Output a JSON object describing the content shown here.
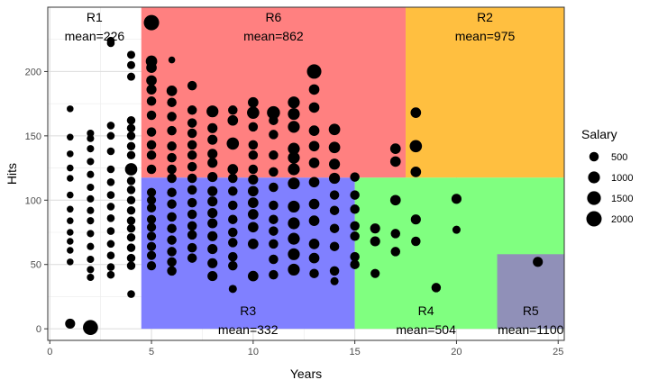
{
  "chart_data": {
    "type": "scatter",
    "xlabel": "Years",
    "ylabel": "Hits",
    "xlim": [
      -0.1,
      25.3
    ],
    "ylim": [
      -9,
      250
    ],
    "x_ticks": [
      0,
      5,
      10,
      15,
      20,
      25
    ],
    "y_ticks": [
      0,
      50,
      100,
      150,
      200
    ],
    "grid": true,
    "legend": {
      "title": "Salary",
      "position": "right",
      "entries": [
        {
          "label": "500",
          "value": 500
        },
        {
          "label": "1000",
          "value": 1000
        },
        {
          "label": "1500",
          "value": 1500
        },
        {
          "label": "2000",
          "value": 2000
        }
      ]
    },
    "regions": [
      {
        "name": "R1",
        "mean_label": "mean=226",
        "x": [
          -0.1,
          4.5
        ],
        "y": [
          0,
          250
        ],
        "color": "#ffffff"
      },
      {
        "name": "R6",
        "mean_label": "mean=862",
        "x": [
          4.5,
          17.5
        ],
        "y": [
          117.5,
          250
        ],
        "color": "#ff8080"
      },
      {
        "name": "R2",
        "mean_label": "mean=975",
        "x": [
          17.5,
          25.3
        ],
        "y": [
          117.5,
          250
        ],
        "color": "#ffbf40"
      },
      {
        "name": "R3",
        "mean_label": "mean=332",
        "x": [
          4.5,
          15
        ],
        "y": [
          0,
          117.5
        ],
        "color": "#8080ff"
      },
      {
        "name": "R4",
        "mean_label": "mean=504",
        "x": [
          15,
          25.3
        ],
        "y": [
          0,
          117.5
        ],
        "color": "#80ff80"
      },
      {
        "name": "R5",
        "mean_label": "mean=1100",
        "x": [
          22,
          25.3
        ],
        "y": [
          0,
          58
        ],
        "color": "#9090b8"
      }
    ],
    "points": [
      [
        1,
        171,
        150
      ],
      [
        1,
        149,
        150
      ],
      [
        1,
        136,
        150
      ],
      [
        1,
        125,
        150
      ],
      [
        1,
        117,
        150
      ],
      [
        1,
        104,
        150
      ],
      [
        1,
        93,
        150
      ],
      [
        1,
        84,
        150
      ],
      [
        1,
        75,
        150
      ],
      [
        1,
        68,
        150
      ],
      [
        1,
        61,
        150
      ],
      [
        1,
        52,
        150
      ],
      [
        1,
        4,
        600
      ],
      [
        2,
        152,
        200
      ],
      [
        2,
        148,
        200
      ],
      [
        2,
        140,
        200
      ],
      [
        2,
        130,
        200
      ],
      [
        2,
        120,
        200
      ],
      [
        2,
        110,
        200
      ],
      [
        2,
        101,
        200
      ],
      [
        2,
        92,
        200
      ],
      [
        2,
        84,
        200
      ],
      [
        2,
        74,
        200
      ],
      [
        2,
        64,
        200
      ],
      [
        2,
        54,
        200
      ],
      [
        2,
        46,
        200
      ],
      [
        2,
        40,
        200
      ],
      [
        2,
        1,
        1900
      ],
      [
        3,
        224,
        250
      ],
      [
        3,
        222,
        250
      ],
      [
        3,
        158,
        250
      ],
      [
        3,
        150,
        250
      ],
      [
        3,
        138,
        250
      ],
      [
        3,
        124,
        250
      ],
      [
        3,
        114,
        250
      ],
      [
        3,
        104,
        250
      ],
      [
        3,
        95,
        250
      ],
      [
        3,
        86,
        250
      ],
      [
        3,
        76,
        250
      ],
      [
        3,
        66,
        250
      ],
      [
        3,
        57,
        250
      ],
      [
        3,
        48,
        250
      ],
      [
        3,
        42,
        250
      ],
      [
        4,
        213,
        300
      ],
      [
        4,
        205,
        300
      ],
      [
        4,
        196,
        300
      ],
      [
        4,
        162,
        350
      ],
      [
        4,
        156,
        350
      ],
      [
        4,
        150,
        350
      ],
      [
        4,
        142,
        350
      ],
      [
        4,
        135,
        350
      ],
      [
        4,
        124,
        1100
      ],
      [
        4,
        115,
        350
      ],
      [
        4,
        108,
        350
      ],
      [
        4,
        100,
        350
      ],
      [
        4,
        92,
        350
      ],
      [
        4,
        84,
        350
      ],
      [
        4,
        78,
        350
      ],
      [
        4,
        71,
        350
      ],
      [
        4,
        63,
        350
      ],
      [
        4,
        55,
        350
      ],
      [
        4,
        49,
        350
      ],
      [
        4,
        27,
        250
      ],
      [
        5,
        238,
        2000
      ],
      [
        5,
        208,
        900
      ],
      [
        5,
        203,
        700
      ],
      [
        5,
        193,
        700
      ],
      [
        5,
        186,
        600
      ],
      [
        5,
        177,
        500
      ],
      [
        5,
        166,
        500
      ],
      [
        5,
        153,
        500
      ],
      [
        5,
        143,
        500
      ],
      [
        5,
        135,
        500
      ],
      [
        5,
        124,
        500
      ],
      [
        5,
        106,
        450
      ],
      [
        5,
        100,
        450
      ],
      [
        5,
        94,
        450
      ],
      [
        5,
        85,
        450
      ],
      [
        5,
        79,
        450
      ],
      [
        5,
        72,
        450
      ],
      [
        5,
        64,
        450
      ],
      [
        5,
        57,
        450
      ],
      [
        5,
        49,
        450
      ],
      [
        6,
        209,
        150
      ],
      [
        6,
        185,
        700
      ],
      [
        6,
        176,
        500
      ],
      [
        6,
        165,
        500
      ],
      [
        6,
        154,
        500
      ],
      [
        6,
        142,
        500
      ],
      [
        6,
        133,
        500
      ],
      [
        6,
        124,
        500
      ],
      [
        6,
        117,
        500
      ],
      [
        6,
        106,
        500
      ],
      [
        6,
        97,
        500
      ],
      [
        6,
        87,
        500
      ],
      [
        6,
        78,
        500
      ],
      [
        6,
        69,
        500
      ],
      [
        6,
        60,
        500
      ],
      [
        6,
        52,
        500
      ],
      [
        6,
        45,
        500
      ],
      [
        7,
        189,
        500
      ],
      [
        7,
        170,
        500
      ],
      [
        7,
        160,
        500
      ],
      [
        7,
        152,
        500
      ],
      [
        7,
        143,
        500
      ],
      [
        7,
        135,
        500
      ],
      [
        7,
        126,
        500
      ],
      [
        7,
        117,
        500
      ],
      [
        7,
        108,
        500
      ],
      [
        7,
        98,
        500
      ],
      [
        7,
        89,
        500
      ],
      [
        7,
        80,
        500
      ],
      [
        7,
        73,
        500
      ],
      [
        7,
        63,
        500
      ],
      [
        7,
        55,
        500
      ],
      [
        8,
        169,
        1000
      ],
      [
        8,
        156,
        600
      ],
      [
        8,
        147,
        600
      ],
      [
        8,
        136,
        600
      ],
      [
        8,
        129,
        600
      ],
      [
        8,
        118,
        600
      ],
      [
        8,
        107,
        600
      ],
      [
        8,
        99,
        600
      ],
      [
        8,
        90,
        600
      ],
      [
        8,
        82,
        600
      ],
      [
        8,
        72,
        600
      ],
      [
        8,
        62,
        600
      ],
      [
        8,
        51,
        600
      ],
      [
        8,
        41,
        600
      ],
      [
        9,
        170,
        500
      ],
      [
        9,
        162,
        700
      ],
      [
        9,
        144,
        1100
      ],
      [
        9,
        124,
        700
      ],
      [
        9,
        117,
        500
      ],
      [
        9,
        107,
        500
      ],
      [
        9,
        96,
        500
      ],
      [
        9,
        85,
        500
      ],
      [
        9,
        75,
        500
      ],
      [
        9,
        67,
        500
      ],
      [
        9,
        56,
        500
      ],
      [
        9,
        49,
        500
      ],
      [
        9,
        31,
        300
      ],
      [
        10,
        176,
        700
      ],
      [
        10,
        168,
        1100
      ],
      [
        10,
        157,
        500
      ],
      [
        10,
        143,
        500
      ],
      [
        10,
        135,
        500
      ],
      [
        10,
        124,
        500
      ],
      [
        10,
        116,
        600
      ],
      [
        10,
        107,
        700
      ],
      [
        10,
        98,
        700
      ],
      [
        10,
        89,
        700
      ],
      [
        10,
        79,
        700
      ],
      [
        10,
        66,
        700
      ],
      [
        10,
        41,
        700
      ],
      [
        11,
        168,
        1300
      ],
      [
        11,
        162,
        500
      ],
      [
        11,
        151,
        500
      ],
      [
        11,
        135,
        500
      ],
      [
        11,
        122,
        500
      ],
      [
        11,
        110,
        500
      ],
      [
        11,
        96,
        500
      ],
      [
        11,
        85,
        500
      ],
      [
        11,
        76,
        500
      ],
      [
        11,
        66,
        500
      ],
      [
        11,
        54,
        500
      ],
      [
        11,
        42,
        500
      ],
      [
        12,
        176,
        1000
      ],
      [
        12,
        167,
        1000
      ],
      [
        12,
        157,
        1000
      ],
      [
        12,
        140,
        1000
      ],
      [
        12,
        133,
        1000
      ],
      [
        12,
        124,
        1000
      ],
      [
        12,
        113,
        1000
      ],
      [
        12,
        95,
        1000
      ],
      [
        12,
        82,
        1000
      ],
      [
        12,
        70,
        1000
      ],
      [
        12,
        58,
        1000
      ],
      [
        12,
        46,
        1000
      ],
      [
        13,
        200,
        1700
      ],
      [
        13,
        186,
        700
      ],
      [
        13,
        172,
        700
      ],
      [
        13,
        154,
        700
      ],
      [
        13,
        142,
        700
      ],
      [
        13,
        129,
        700
      ],
      [
        13,
        114,
        700
      ],
      [
        13,
        97,
        700
      ],
      [
        13,
        84,
        700
      ],
      [
        13,
        66,
        700
      ],
      [
        13,
        55,
        700
      ],
      [
        13,
        43,
        500
      ],
      [
        14,
        155,
        900
      ],
      [
        14,
        141,
        900
      ],
      [
        14,
        128,
        800
      ],
      [
        14,
        117,
        800
      ],
      [
        14,
        104,
        500
      ],
      [
        14,
        92,
        500
      ],
      [
        14,
        78,
        500
      ],
      [
        14,
        64,
        500
      ],
      [
        14,
        45,
        500
      ],
      [
        14,
        37,
        300
      ],
      [
        15,
        118,
        500
      ],
      [
        15,
        104,
        500
      ],
      [
        15,
        93,
        500
      ],
      [
        15,
        80,
        500
      ],
      [
        15,
        72,
        500
      ],
      [
        15,
        56,
        500
      ],
      [
        15,
        50,
        500
      ],
      [
        16,
        78,
        600
      ],
      [
        16,
        68,
        600
      ],
      [
        16,
        43,
        450
      ],
      [
        17,
        140,
        700
      ],
      [
        17,
        130,
        700
      ],
      [
        17,
        100,
        700
      ],
      [
        17,
        74,
        500
      ],
      [
        17,
        60,
        500
      ],
      [
        18,
        168,
        700
      ],
      [
        18,
        142,
        1100
      ],
      [
        18,
        122,
        700
      ],
      [
        18,
        85,
        600
      ],
      [
        18,
        68,
        500
      ],
      [
        19,
        32,
        500
      ],
      [
        20,
        101,
        600
      ],
      [
        20,
        77,
        300
      ],
      [
        24,
        52,
        600
      ]
    ]
  }
}
